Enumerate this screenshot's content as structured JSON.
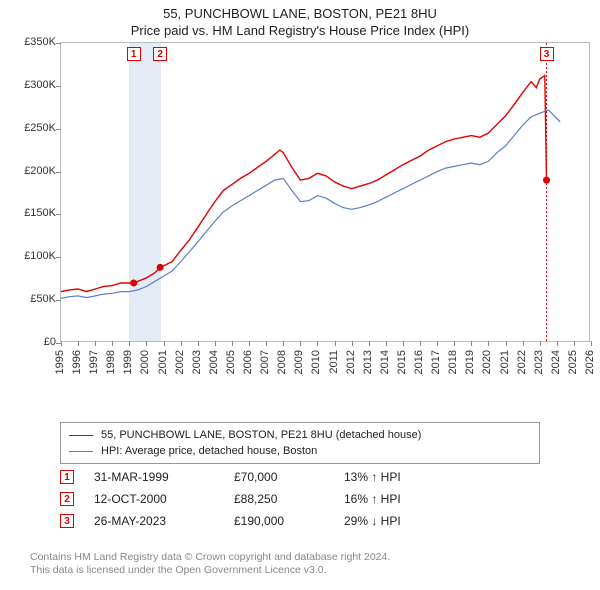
{
  "title": {
    "line1": "55, PUNCHBOWL LANE, BOSTON, PE21 8HU",
    "line2": "Price paid vs. HM Land Registry's House Price Index (HPI)"
  },
  "chart": {
    "type": "line",
    "background_color": "#ffffff",
    "highlight_band": {
      "x_start": 1999.0,
      "x_end": 2000.85,
      "color": "#e4ebf5"
    },
    "y": {
      "min": 0,
      "max": 350000,
      "tick_step": 50000,
      "tick_labels": [
        "£0",
        "£50K",
        "£100K",
        "£150K",
        "£200K",
        "£250K",
        "£300K",
        "£350K"
      ],
      "label_fontsize": 11
    },
    "x": {
      "min": 1995,
      "max": 2026,
      "tick_step": 1,
      "ticks": [
        1995,
        1996,
        1997,
        1998,
        1999,
        2000,
        2001,
        2002,
        2003,
        2004,
        2005,
        2006,
        2007,
        2008,
        2009,
        2010,
        2011,
        2012,
        2013,
        2014,
        2015,
        2016,
        2017,
        2018,
        2019,
        2020,
        2021,
        2022,
        2023,
        2024,
        2025,
        2026
      ],
      "label_fontsize": 11
    },
    "series": [
      {
        "name": "55, PUNCHBOWL LANE, BOSTON, PE21 8HU (detached house)",
        "color": "#e00000",
        "line_width": 1.4,
        "points": [
          [
            1995.0,
            60000
          ],
          [
            1995.5,
            62000
          ],
          [
            1996.0,
            63000
          ],
          [
            1996.5,
            60000
          ],
          [
            1997.0,
            63000
          ],
          [
            1997.5,
            66000
          ],
          [
            1998.0,
            67000
          ],
          [
            1998.5,
            70000
          ],
          [
            1999.0,
            70000
          ],
          [
            1999.25,
            70000
          ],
          [
            1999.5,
            72000
          ],
          [
            2000.0,
            76000
          ],
          [
            2000.5,
            82000
          ],
          [
            2000.8,
            88250
          ],
          [
            2001.0,
            90000
          ],
          [
            2001.5,
            95000
          ],
          [
            2002.0,
            108000
          ],
          [
            2002.5,
            120000
          ],
          [
            2003.0,
            135000
          ],
          [
            2003.5,
            150000
          ],
          [
            2004.0,
            165000
          ],
          [
            2004.5,
            178000
          ],
          [
            2005.0,
            185000
          ],
          [
            2005.5,
            192000
          ],
          [
            2006.0,
            198000
          ],
          [
            2006.5,
            205000
          ],
          [
            2007.0,
            212000
          ],
          [
            2007.5,
            220000
          ],
          [
            2007.8,
            225000
          ],
          [
            2008.0,
            222000
          ],
          [
            2008.5,
            205000
          ],
          [
            2009.0,
            190000
          ],
          [
            2009.5,
            192000
          ],
          [
            2010.0,
            198000
          ],
          [
            2010.5,
            195000
          ],
          [
            2011.0,
            188000
          ],
          [
            2011.5,
            183000
          ],
          [
            2012.0,
            180000
          ],
          [
            2012.5,
            183000
          ],
          [
            2013.0,
            186000
          ],
          [
            2013.5,
            190000
          ],
          [
            2014.0,
            196000
          ],
          [
            2014.5,
            202000
          ],
          [
            2015.0,
            208000
          ],
          [
            2015.5,
            213000
          ],
          [
            2016.0,
            218000
          ],
          [
            2016.5,
            225000
          ],
          [
            2017.0,
            230000
          ],
          [
            2017.5,
            235000
          ],
          [
            2018.0,
            238000
          ],
          [
            2018.5,
            240000
          ],
          [
            2019.0,
            242000
          ],
          [
            2019.5,
            240000
          ],
          [
            2020.0,
            245000
          ],
          [
            2020.5,
            255000
          ],
          [
            2021.0,
            265000
          ],
          [
            2021.5,
            278000
          ],
          [
            2022.0,
            292000
          ],
          [
            2022.5,
            305000
          ],
          [
            2022.8,
            298000
          ],
          [
            2023.0,
            308000
          ],
          [
            2023.3,
            312000
          ],
          [
            2023.4,
            190000
          ]
        ]
      },
      {
        "name": "HPI: Average price, detached house, Boston",
        "color": "#5a7fc8",
        "line_width": 1.2,
        "points": [
          [
            1995.0,
            52000
          ],
          [
            1995.5,
            54000
          ],
          [
            1996.0,
            55000
          ],
          [
            1996.5,
            53000
          ],
          [
            1997.0,
            55000
          ],
          [
            1997.5,
            57000
          ],
          [
            1998.0,
            58000
          ],
          [
            1998.5,
            60000
          ],
          [
            1999.0,
            60000
          ],
          [
            1999.5,
            62000
          ],
          [
            2000.0,
            66000
          ],
          [
            2000.5,
            72000
          ],
          [
            2001.0,
            78000
          ],
          [
            2001.5,
            84000
          ],
          [
            2002.0,
            95000
          ],
          [
            2002.5,
            106000
          ],
          [
            2003.0,
            118000
          ],
          [
            2003.5,
            130000
          ],
          [
            2004.0,
            142000
          ],
          [
            2004.5,
            153000
          ],
          [
            2005.0,
            160000
          ],
          [
            2005.5,
            166000
          ],
          [
            2006.0,
            172000
          ],
          [
            2006.5,
            178000
          ],
          [
            2007.0,
            184000
          ],
          [
            2007.5,
            190000
          ],
          [
            2008.0,
            192000
          ],
          [
            2008.5,
            178000
          ],
          [
            2009.0,
            165000
          ],
          [
            2009.5,
            166000
          ],
          [
            2010.0,
            172000
          ],
          [
            2010.5,
            169000
          ],
          [
            2011.0,
            163000
          ],
          [
            2011.5,
            158000
          ],
          [
            2012.0,
            156000
          ],
          [
            2012.5,
            158000
          ],
          [
            2013.0,
            161000
          ],
          [
            2013.5,
            165000
          ],
          [
            2014.0,
            170000
          ],
          [
            2014.5,
            175000
          ],
          [
            2015.0,
            180000
          ],
          [
            2015.5,
            185000
          ],
          [
            2016.0,
            190000
          ],
          [
            2016.5,
            195000
          ],
          [
            2017.0,
            200000
          ],
          [
            2017.5,
            204000
          ],
          [
            2018.0,
            206000
          ],
          [
            2018.5,
            208000
          ],
          [
            2019.0,
            210000
          ],
          [
            2019.5,
            208000
          ],
          [
            2020.0,
            212000
          ],
          [
            2020.5,
            222000
          ],
          [
            2021.0,
            230000
          ],
          [
            2021.5,
            242000
          ],
          [
            2022.0,
            254000
          ],
          [
            2022.5,
            264000
          ],
          [
            2023.0,
            268000
          ],
          [
            2023.5,
            272000
          ],
          [
            2024.0,
            262000
          ],
          [
            2024.2,
            258000
          ]
        ]
      }
    ],
    "sale_markers": [
      {
        "n": "1",
        "x": 1999.25,
        "y": 70000,
        "dot": true,
        "drop_line": false
      },
      {
        "n": "2",
        "x": 2000.8,
        "y": 88250,
        "dot": true,
        "drop_line": false
      },
      {
        "n": "3",
        "x": 2023.4,
        "y": 190000,
        "dot": true,
        "drop_line": true
      }
    ]
  },
  "legend": {
    "border_color": "#999999",
    "items": [
      {
        "color": "#e00000",
        "label": "55, PUNCHBOWL LANE, BOSTON, PE21 8HU (detached house)"
      },
      {
        "color": "#5a7fc8",
        "label": "HPI: Average price, detached house, Boston"
      }
    ]
  },
  "annotations": [
    {
      "n": "1",
      "date": "31-MAR-1999",
      "price": "£70,000",
      "delta": "13% ↑ HPI"
    },
    {
      "n": "2",
      "date": "12-OCT-2000",
      "price": "£88,250",
      "delta": "16% ↑ HPI"
    },
    {
      "n": "3",
      "date": "26-MAY-2023",
      "price": "£190,000",
      "delta": "29% ↓ HPI"
    }
  ],
  "footer": {
    "line1": "Contains HM Land Registry data © Crown copyright and database right 2024.",
    "line2": "This data is licensed under the Open Government Licence v3.0."
  }
}
